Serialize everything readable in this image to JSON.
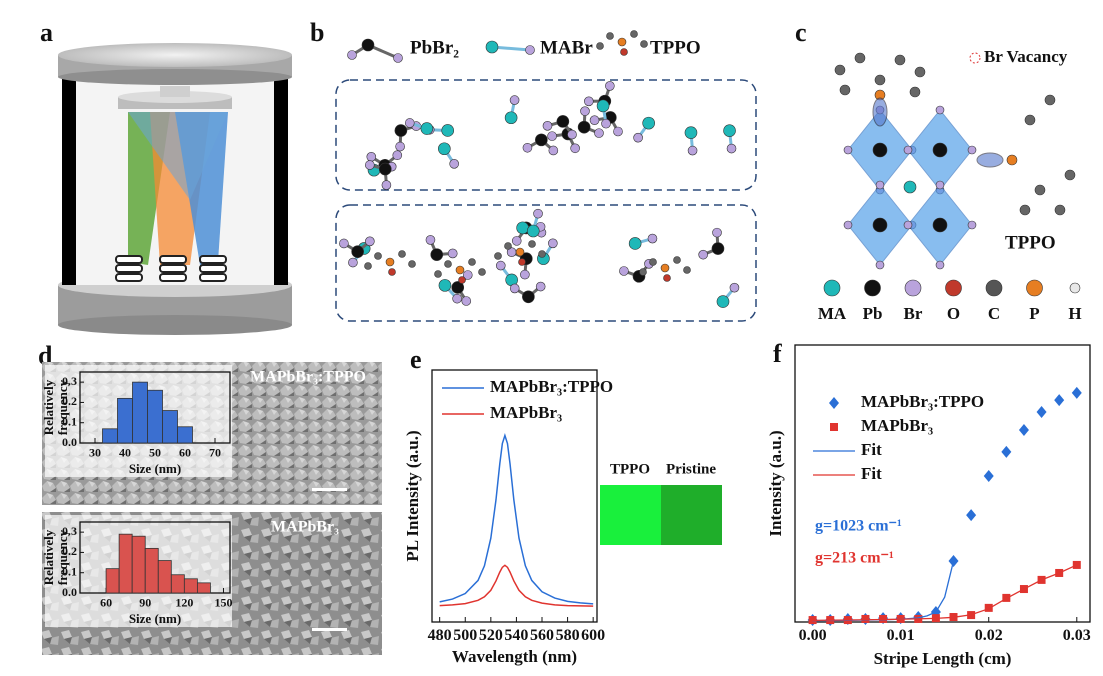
{
  "panel_labels": [
    "a",
    "b",
    "c",
    "d",
    "e",
    "f"
  ],
  "panel_b": {
    "legend": [
      "PbBr₂",
      "MABr",
      "TPPO"
    ]
  },
  "panel_c": {
    "annotation": "Br Vacancy",
    "molecule_label": "TPPO",
    "legend": [
      {
        "label": "MA",
        "color": "#1fb8b8"
      },
      {
        "label": "Pb",
        "color": "#111111"
      },
      {
        "label": "Br",
        "color": "#b9a3dc"
      },
      {
        "label": "O",
        "color": "#c0392b"
      },
      {
        "label": "C",
        "color": "#555555"
      },
      {
        "label": "P",
        "color": "#e67e22"
      },
      {
        "label": "H",
        "color": "#e8e8e8"
      }
    ]
  },
  "panel_d": {
    "images": [
      {
        "label": "MAPbBr₃:TPPO"
      },
      {
        "label": "MAPbBr₃"
      }
    ]
  },
  "chart_data": [
    {
      "type": "histogram",
      "xlabel": "Size (nm)",
      "ylabel": [
        "Relatively",
        "frequency"
      ],
      "color": "#3b6fd0",
      "bins": [
        32.5,
        37.5,
        42.5,
        47.5,
        52.5,
        57.5,
        62.5
      ],
      "values": [
        0.07,
        0.22,
        0.3,
        0.26,
        0.16,
        0.08
      ],
      "xlim": [
        25,
        75
      ],
      "xticks": [
        30,
        40,
        50,
        60,
        70
      ],
      "ylim": [
        0,
        0.35
      ],
      "yticks": [
        {
          "value": 0,
          "label": "0.0"
        },
        0.1,
        0.2,
        0.3
      ]
    },
    {
      "type": "histogram",
      "xlabel": "Size (nm)",
      "ylabel": [
        "Relatively",
        "frequency"
      ],
      "color": "#d9534f",
      "bins": [
        60,
        70,
        80,
        90,
        100,
        110,
        120,
        130,
        140
      ],
      "values": [
        0.12,
        0.29,
        0.28,
        0.22,
        0.16,
        0.09,
        0.07,
        0.05
      ],
      "xlim": [
        40,
        155
      ],
      "xticks": [
        60,
        90,
        120,
        150
      ],
      "ylim": [
        0,
        0.35
      ],
      "yticks": [
        {
          "value": 0,
          "label": "0.0"
        },
        0.1,
        0.2,
        0.3
      ]
    },
    {
      "type": "line",
      "xlabel": "Wavelength (nm)",
      "ylabel": "PL Intensity (a.u.)",
      "x": [
        480,
        490,
        500,
        510,
        515,
        520,
        524,
        527,
        529,
        531,
        533,
        535,
        538,
        542,
        547,
        552,
        560,
        570,
        580,
        590,
        600
      ],
      "series": [
        {
          "name": "MAPbBr₃:TPPO",
          "color": "#2a6fd6",
          "values": [
            0.08,
            0.091,
            0.113,
            0.165,
            0.223,
            0.333,
            0.484,
            0.628,
            0.708,
            0.74,
            0.708,
            0.628,
            0.484,
            0.333,
            0.223,
            0.165,
            0.12,
            0.095,
            0.082,
            0.076,
            0.072
          ]
        },
        {
          "name": "MAPbBr₃",
          "color": "#e0342f",
          "values": [
            0.065,
            0.068,
            0.073,
            0.086,
            0.1,
            0.126,
            0.163,
            0.198,
            0.217,
            0.225,
            0.217,
            0.198,
            0.163,
            0.126,
            0.1,
            0.086,
            0.075,
            0.068,
            0.065,
            0.064,
            0.063
          ]
        }
      ],
      "inset_labels": [
        "TPPO",
        "Pristine"
      ],
      "inset_colors": [
        "#19f03c",
        "#1fae2a"
      ],
      "xlim": [
        474,
        603
      ],
      "xticks": [
        480,
        500,
        520,
        540,
        560,
        580,
        600
      ],
      "ylim": [
        0,
        1
      ],
      "legend": "upper left"
    },
    {
      "type": "scatter",
      "xlabel": "Stripe Length (cm)",
      "ylabel": "Intensity (a.u.)",
      "series": [
        {
          "name": "MAPbBr₃:TPPO",
          "color": "#2a6fd6",
          "marker": "diamond",
          "x": [
            0,
            0.002,
            0.004,
            0.006,
            0.008,
            0.01,
            0.012,
            0.014,
            0.016,
            0.018,
            0.02,
            0.022,
            0.024,
            0.026,
            0.028,
            0.03
          ],
          "values": [
            0.007,
            0.007,
            0.011,
            0.011,
            0.014,
            0.014,
            0.018,
            0.036,
            0.22,
            0.386,
            0.527,
            0.614,
            0.693,
            0.758,
            0.801,
            0.827
          ]
        },
        {
          "name": "MAPbBr₃",
          "color": "#e0342f",
          "marker": "square",
          "x": [
            0,
            0.002,
            0.004,
            0.006,
            0.008,
            0.01,
            0.012,
            0.014,
            0.016,
            0.018,
            0.02,
            0.022,
            0.024,
            0.026,
            0.028,
            0.03
          ],
          "values": [
            0.007,
            0.007,
            0.007,
            0.011,
            0.011,
            0.011,
            0.011,
            0.014,
            0.018,
            0.025,
            0.051,
            0.087,
            0.119,
            0.152,
            0.177,
            0.206
          ]
        },
        {
          "name": "Fit",
          "color": "#2a6fd6",
          "marker": "line",
          "x": [
            0,
            0.004,
            0.008,
            0.01,
            0.012,
            0.013,
            0.014,
            0.015,
            0.016
          ],
          "values": [
            0.005,
            0.006,
            0.008,
            0.01,
            0.015,
            0.022,
            0.036,
            0.09,
            0.22
          ]
        },
        {
          "name": "Fit",
          "color": "#e0342f",
          "marker": "line",
          "x": [
            0,
            0.006,
            0.01,
            0.014,
            0.016,
            0.018,
            0.02,
            0.022,
            0.024,
            0.026,
            0.028,
            0.03
          ],
          "values": [
            0.006,
            0.008,
            0.01,
            0.013,
            0.017,
            0.026,
            0.048,
            0.085,
            0.119,
            0.152,
            0.177,
            0.206
          ]
        }
      ],
      "annotations": [
        {
          "text": "g=1023 cm⁻¹",
          "color": "#2a6fd6"
        },
        {
          "text": "g=213 cm⁻¹",
          "color": "#e0342f"
        }
      ],
      "xlim": [
        -0.002,
        0.0315
      ],
      "xticks": [
        {
          "value": 0,
          "label": "0.00"
        },
        0.01,
        0.02,
        0.03
      ],
      "ylim": [
        0,
        1
      ],
      "legend": "upper left"
    }
  ]
}
